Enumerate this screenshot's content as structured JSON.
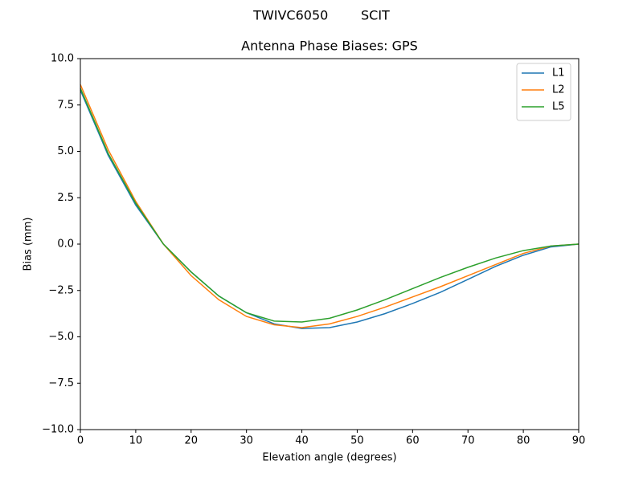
{
  "chart_data": {
    "type": "line",
    "suptitle": "TWIVC6050        SCIT",
    "title": "Antenna Phase Biases: GPS",
    "xlabel": "Elevation angle (degrees)",
    "ylabel": "Bias (mm)",
    "x": [
      0,
      5,
      10,
      15,
      20,
      25,
      30,
      35,
      40,
      45,
      50,
      55,
      60,
      65,
      70,
      75,
      80,
      85,
      90
    ],
    "series": [
      {
        "name": "L1",
        "color": "#1f77b4",
        "values": [
          8.3,
          4.8,
          2.1,
          0.0,
          -1.5,
          -2.8,
          -3.7,
          -4.3,
          -4.55,
          -4.5,
          -4.2,
          -3.75,
          -3.2,
          -2.6,
          -1.9,
          -1.2,
          -0.6,
          -0.15,
          0.0
        ]
      },
      {
        "name": "L2",
        "color": "#ff7f0e",
        "values": [
          8.6,
          5.1,
          2.3,
          0.0,
          -1.7,
          -3.0,
          -3.9,
          -4.35,
          -4.5,
          -4.3,
          -3.9,
          -3.4,
          -2.85,
          -2.3,
          -1.7,
          -1.1,
          -0.5,
          -0.1,
          0.0
        ]
      },
      {
        "name": "L5",
        "color": "#2ca02c",
        "values": [
          8.4,
          4.9,
          2.2,
          0.0,
          -1.5,
          -2.8,
          -3.7,
          -4.15,
          -4.2,
          -4.0,
          -3.55,
          -3.0,
          -2.4,
          -1.8,
          -1.25,
          -0.75,
          -0.35,
          -0.1,
          0.0
        ]
      }
    ],
    "xlim": [
      0,
      90
    ],
    "xticks": [
      0,
      10,
      20,
      30,
      40,
      50,
      60,
      70,
      80,
      90
    ],
    "ylim": [
      -10,
      10
    ],
    "yticks": [
      {
        "value": -10,
        "label": "−10.0"
      },
      {
        "value": -7.5,
        "label": "−7.5"
      },
      {
        "value": -5,
        "label": "−5.0"
      },
      {
        "value": -2.5,
        "label": "−2.5"
      },
      {
        "value": 0,
        "label": "0.0"
      },
      {
        "value": 2.5,
        "label": "2.5"
      },
      {
        "value": 5,
        "label": "5.0"
      },
      {
        "value": 7.5,
        "label": "7.5"
      },
      {
        "value": 10,
        "label": "10.0"
      }
    ],
    "grid": false,
    "legend": "upper right"
  }
}
